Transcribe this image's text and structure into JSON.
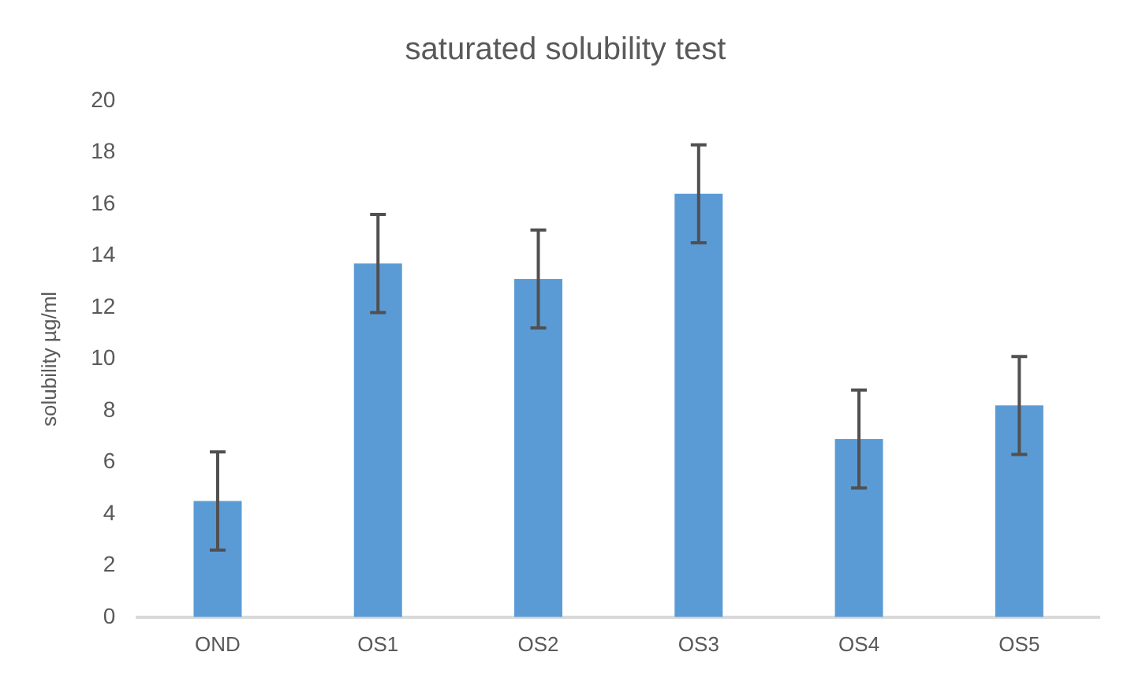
{
  "chart_data": {
    "type": "bar",
    "title": "saturated solubility test",
    "ylabel": "solubility µg/ml",
    "categories": [
      "OND",
      "OS1",
      "OS2",
      "OS3",
      "OS4",
      "OS5"
    ],
    "values": [
      4.5,
      13.7,
      13.1,
      16.4,
      6.9,
      8.2
    ],
    "errors": [
      1.9,
      1.9,
      1.9,
      1.9,
      1.9,
      1.9
    ],
    "color": "#5b9bd5",
    "ylim": [
      0,
      20
    ],
    "yticks": [
      0,
      2,
      4,
      6,
      8,
      10,
      12,
      14,
      16,
      18,
      20
    ],
    "grid": false,
    "legend": false
  }
}
